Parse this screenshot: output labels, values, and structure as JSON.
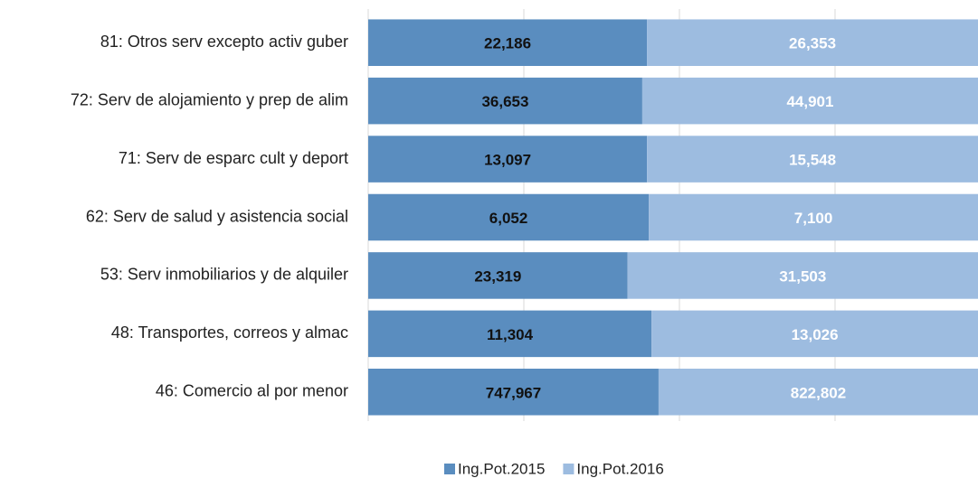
{
  "chart_data": {
    "type": "bar_stacked_percent",
    "categories": [
      "81: Otros serv excepto activ guber",
      "72: Serv de alojamiento y prep de alim",
      "71: Serv de esparc cult y deport",
      "62: Serv de salud y asistencia social",
      "53: Serv inmobiliarios y de alquiler",
      "48: Transportes, correos y almac",
      "46: Comercio al por menor"
    ],
    "series": [
      {
        "name": "Ing.Pot.2015",
        "color": "#5a8dbf",
        "label_color": "#111111",
        "values": [
          22186,
          36653,
          13097,
          6052,
          23319,
          11304,
          747967
        ],
        "value_labels": [
          "22,186",
          "36,653",
          "13,097",
          "6,052",
          "23,319",
          "11,304",
          "747,967"
        ]
      },
      {
        "name": "Ing.Pot.2016",
        "color": "#9dbce0",
        "label_color": "#ffffff",
        "values": [
          26353,
          44901,
          15548,
          7100,
          31503,
          13026,
          822802
        ],
        "value_labels": [
          "26,353",
          "44,901",
          "15,548",
          "7,100",
          "31,503",
          "13,026",
          "822,802"
        ]
      }
    ],
    "legend": "bottom"
  }
}
